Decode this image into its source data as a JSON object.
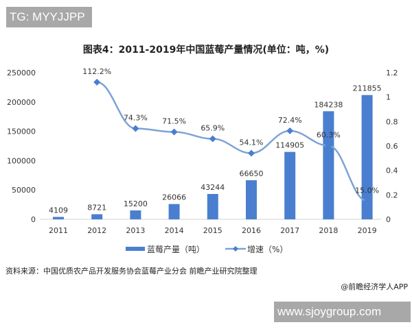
{
  "watermarks": {
    "top_left": "TG: MYYJJPP",
    "bottom_right": "www.sjoygroup.com"
  },
  "source": "资料来源：中国优质农产品开发服务协会蓝莓产业分会 前瞻产业研究院整理",
  "credit": "@前瞻经济学人APP",
  "chart_data": {
    "type": "bar+line",
    "title": "图表4：2011-2019年中国蓝莓产量情况(单位：吨，%)",
    "categories": [
      "2011",
      "2012",
      "2013",
      "2014",
      "2015",
      "2016",
      "2017",
      "2018",
      "2019"
    ],
    "series": [
      {
        "name": "蓝莓产量（吨）",
        "type": "bar",
        "axis": "left",
        "color": "#4a7fcf",
        "values": [
          4109,
          8721,
          15200,
          26066,
          43244,
          66650,
          114905,
          184238,
          211855
        ],
        "labels": [
          "4109",
          "8721",
          "15200",
          "26066",
          "43244",
          "66650",
          "114905",
          "184238",
          "211855"
        ]
      },
      {
        "name": "增速（%）",
        "type": "line",
        "axis": "right",
        "color": "#7ba3d6",
        "values": [
          null,
          1.122,
          0.743,
          0.715,
          0.659,
          0.541,
          0.724,
          0.603,
          0.15
        ],
        "labels": [
          "",
          "112.2%",
          "74.3%",
          "71.5%",
          "65.9%",
          "54.1%",
          "72.4%",
          "60.3%",
          "15.0%"
        ]
      }
    ],
    "y_left": {
      "range": [
        0,
        250000
      ],
      "ticks": [
        "0",
        "50000",
        "100000",
        "150000",
        "200000",
        "250000"
      ]
    },
    "y_right": {
      "range": [
        0,
        1.2
      ],
      "ticks": [
        "0",
        "0.2",
        "0.4",
        "0.6",
        "0.8",
        "1",
        "1.2"
      ]
    },
    "grid": false,
    "legend": "bottom"
  }
}
